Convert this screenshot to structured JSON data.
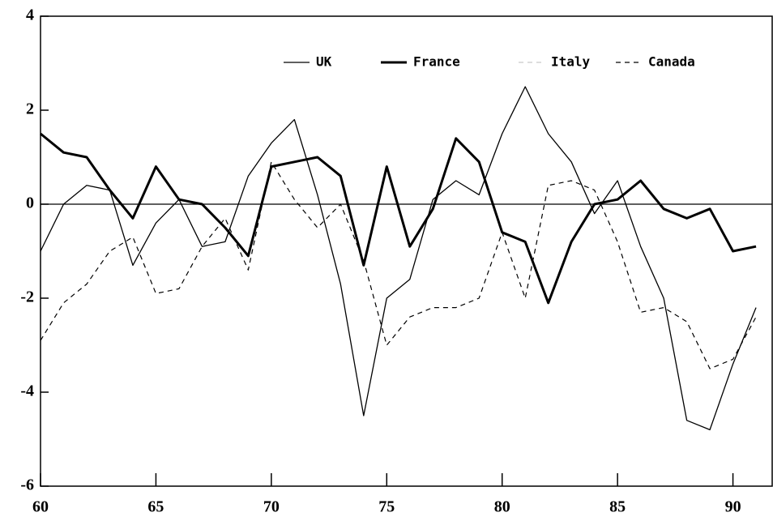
{
  "chart_data": {
    "type": "line",
    "x": [
      60,
      61,
      62,
      63,
      64,
      65,
      66,
      67,
      68,
      69,
      70,
      71,
      72,
      73,
      74,
      75,
      76,
      77,
      78,
      79,
      80,
      81,
      82,
      83,
      84,
      85,
      86,
      87,
      88,
      89,
      90,
      91
    ],
    "series": [
      {
        "name": "UK",
        "color": "#000000",
        "width": 1.3,
        "dash": false,
        "values": [
          -1.0,
          0.0,
          0.4,
          0.3,
          -1.3,
          -0.4,
          0.1,
          -0.9,
          -0.8,
          0.6,
          1.3,
          1.8,
          0.2,
          -1.7,
          -4.5,
          -2.0,
          -1.6,
          0.1,
          0.5,
          0.2,
          1.5,
          2.5,
          1.5,
          0.9,
          -0.2,
          0.5,
          -0.9,
          -2.0,
          -4.6,
          -4.8,
          -3.4,
          -2.2
        ]
      },
      {
        "name": "France",
        "color": "#000000",
        "width": 3,
        "dash": false,
        "values": [
          1.5,
          1.1,
          1.0,
          0.3,
          -0.3,
          0.8,
          0.1,
          0.0,
          -0.5,
          -1.1,
          0.8,
          0.9,
          1.0,
          0.6,
          -1.3,
          0.8,
          -0.9,
          -0.1,
          1.4,
          0.9,
          -0.6,
          -0.8,
          -2.1,
          -0.8,
          0.0,
          0.1,
          0.5,
          -0.1,
          -0.3,
          -0.1,
          -1.0,
          -0.9
        ]
      },
      {
        "name": "Italy",
        "color": "#bbbbbb",
        "width": 1,
        "dash": true,
        "values": [
          null,
          null,
          null,
          null,
          null,
          null,
          null,
          null,
          null,
          null,
          null,
          null,
          null,
          null,
          null,
          null,
          null,
          null,
          null,
          null,
          null,
          null,
          null,
          null,
          null,
          null,
          null,
          null,
          null,
          null,
          null,
          null
        ]
      },
      {
        "name": "Canada",
        "color": "#000000",
        "width": 1.2,
        "dash": true,
        "values": [
          -2.9,
          -2.1,
          -1.7,
          -1.0,
          -0.7,
          -1.9,
          -1.8,
          -0.9,
          -0.3,
          -1.4,
          0.9,
          0.1,
          -0.5,
          0.0,
          -1.2,
          -3.0,
          -2.4,
          -2.2,
          -2.2,
          -2.0,
          -0.6,
          -2.0,
          0.4,
          0.5,
          0.3,
          -0.8,
          -2.3,
          -2.2,
          -2.5,
          -3.5,
          -3.3,
          -2.4
        ]
      }
    ],
    "xlim": [
      60,
      91.7
    ],
    "xticks": [
      60,
      65,
      70,
      75,
      80,
      85,
      90
    ],
    "ylim": [
      -6,
      4
    ],
    "yticks": [
      -6,
      -4,
      -2,
      0,
      2,
      4
    ],
    "zero_line": true,
    "legend": "top-right"
  }
}
